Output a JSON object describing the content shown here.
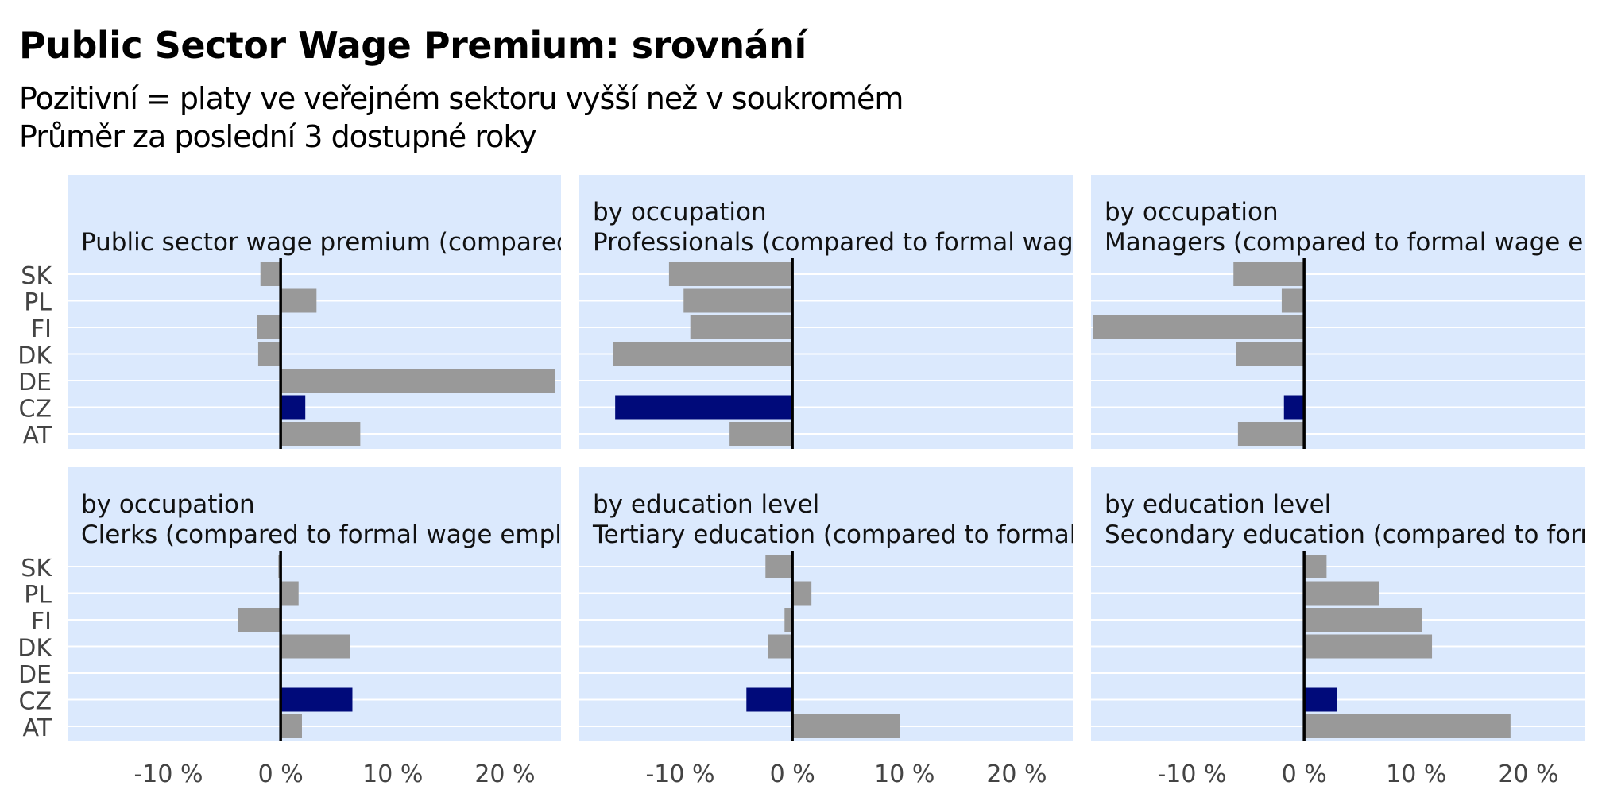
{
  "title": "Public Sector Wage Premium: srovnání",
  "subtitle_lines": [
    "Pozitivní = platy ve veřejném sektoru vyšší než v soukromém",
    "Průměr za poslední 3 dostupné roky"
  ],
  "colors": {
    "panel_background": "#dbe9fd",
    "gridline": "#ffffff",
    "bar_default": "#999999",
    "bar_highlight": "#000a7a",
    "zero_line": "#000000",
    "axis_text": "#444444"
  },
  "chart_data": {
    "type": "bar",
    "orientation": "horizontal",
    "layout": "facet 2x3",
    "highlight_category": "CZ",
    "categories": [
      "SK",
      "PL",
      "FI",
      "DK",
      "DE",
      "CZ",
      "AT"
    ],
    "xlim": [
      -19,
      25
    ],
    "x_ticks": [
      -10,
      0,
      10,
      20
    ],
    "x_tick_labels": [
      "-10 %",
      "0 %",
      "10 %",
      "20 %"
    ],
    "panels": [
      {
        "title_lines": [
          "Public sector wage premium (compared to"
        ],
        "values": [
          -1.8,
          3.2,
          -2.1,
          -2.0,
          24.5,
          2.2,
          7.1
        ]
      },
      {
        "title_lines": [
          "by occupation",
          "Professionals (compared to formal wage er"
        ],
        "values": [
          -11,
          -9.7,
          -9.1,
          -16,
          0,
          -15.8,
          -5.6
        ]
      },
      {
        "title_lines": [
          "by occupation",
          "Managers (compared to formal wage emple"
        ],
        "values": [
          -6.3,
          -2.0,
          -18.8,
          -6.1,
          0,
          -1.8,
          -5.9
        ]
      },
      {
        "title_lines": [
          "by occupation",
          "Clerks (compared to formal wage employe"
        ],
        "values": [
          -0.2,
          1.6,
          -3.8,
          6.2,
          0,
          6.4,
          1.9
        ]
      },
      {
        "title_lines": [
          "by education level",
          "Tertiary education (compared to formal wa"
        ],
        "values": [
          -2.4,
          1.7,
          -0.7,
          -2.2,
          0,
          -4.1,
          9.6
        ]
      },
      {
        "title_lines": [
          "by education level",
          "Secondary education (compared to formal"
        ],
        "values": [
          2.0,
          6.7,
          10.5,
          11.4,
          0,
          2.9,
          18.4
        ]
      }
    ]
  }
}
